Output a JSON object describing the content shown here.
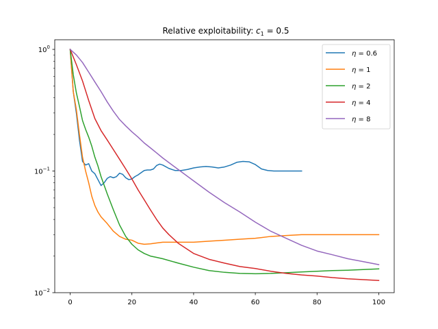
{
  "chart_data": {
    "type": "line",
    "title": "Relative exploitability: ",
    "title_math": "c",
    "title_math_sub": "1",
    "title_math_rest": " = 0.5",
    "xlabel": "",
    "ylabel": "",
    "yscale": "log",
    "xlim": [
      -5,
      105
    ],
    "ylim": [
      0.01,
      1.2
    ],
    "x_ticks": [
      0,
      20,
      40,
      60,
      80,
      100
    ],
    "x_tick_labels": [
      "0",
      "20",
      "40",
      "60",
      "80",
      "100"
    ],
    "y_ticks": [
      {
        "value": 1,
        "base": "10",
        "exp": "0"
      },
      {
        "value": 0.1,
        "base": "10",
        "exp": "−1"
      },
      {
        "value": 0.01,
        "base": "10",
        "exp": "−2"
      }
    ],
    "legend_position": "top-right",
    "series": [
      {
        "name": "η = 0.6",
        "legend_var": "η",
        "legend_val": " = 0.6",
        "color": "#1f77b4",
        "x": [
          0,
          1,
          2,
          3,
          4,
          5,
          6,
          7,
          8,
          9,
          10,
          11,
          12,
          13,
          14,
          15,
          16,
          17,
          18,
          19,
          20,
          21,
          22,
          23,
          24,
          25,
          26,
          27,
          28,
          29,
          30,
          32,
          34,
          36,
          38,
          40,
          42,
          44,
          46,
          48,
          50,
          52,
          54,
          56,
          58,
          60,
          62,
          64,
          66,
          68,
          70,
          72,
          75
        ],
        "y": [
          1.0,
          0.45,
          0.3,
          0.18,
          0.12,
          0.112,
          0.115,
          0.1,
          0.095,
          0.085,
          0.076,
          0.08,
          0.087,
          0.09,
          0.088,
          0.09,
          0.096,
          0.094,
          0.088,
          0.085,
          0.086,
          0.09,
          0.093,
          0.097,
          0.101,
          0.102,
          0.102,
          0.104,
          0.111,
          0.114,
          0.112,
          0.105,
          0.101,
          0.101,
          0.103,
          0.106,
          0.108,
          0.109,
          0.108,
          0.106,
          0.108,
          0.112,
          0.118,
          0.12,
          0.119,
          0.113,
          0.104,
          0.101,
          0.1,
          0.1,
          0.1,
          0.1,
          0.1
        ]
      },
      {
        "name": "η = 1",
        "legend_var": "η",
        "legend_val": " = 1",
        "color": "#ff7f0e",
        "x": [
          0,
          1,
          2,
          3,
          4,
          5,
          6,
          7,
          8,
          9,
          10,
          12,
          14,
          16,
          18,
          20,
          22,
          24,
          26,
          28,
          30,
          35,
          40,
          45,
          50,
          55,
          60,
          65,
          70,
          75,
          80,
          85,
          90,
          95,
          100
        ],
        "y": [
          1.0,
          0.45,
          0.32,
          0.2,
          0.13,
          0.1,
          0.08,
          0.062,
          0.052,
          0.046,
          0.042,
          0.037,
          0.032,
          0.029,
          0.0275,
          0.027,
          0.0255,
          0.025,
          0.0252,
          0.0256,
          0.026,
          0.026,
          0.026,
          0.0265,
          0.027,
          0.0275,
          0.028,
          0.029,
          0.0295,
          0.03,
          0.03,
          0.03,
          0.03,
          0.03,
          0.03
        ]
      },
      {
        "name": "η = 2",
        "legend_var": "η",
        "legend_val": " = 2",
        "color": "#2ca02c",
        "x": [
          0,
          1,
          2,
          3,
          4,
          5,
          6,
          7,
          8,
          9,
          10,
          12,
          14,
          16,
          18,
          20,
          22,
          24,
          26,
          28,
          30,
          35,
          40,
          45,
          50,
          55,
          60,
          65,
          70,
          75,
          80,
          85,
          90,
          95,
          100
        ],
        "y": [
          1.0,
          0.62,
          0.44,
          0.34,
          0.26,
          0.22,
          0.19,
          0.16,
          0.13,
          0.11,
          0.09,
          0.065,
          0.048,
          0.036,
          0.029,
          0.025,
          0.0225,
          0.021,
          0.02,
          0.0195,
          0.019,
          0.0175,
          0.0162,
          0.0152,
          0.0147,
          0.0144,
          0.0143,
          0.0144,
          0.0146,
          0.0148,
          0.015,
          0.0152,
          0.0153,
          0.0155,
          0.0157
        ]
      },
      {
        "name": "η = 4",
        "legend_var": "η",
        "legend_val": " = 4",
        "color": "#d62728",
        "x": [
          0,
          2,
          4,
          6,
          8,
          10,
          12,
          14,
          16,
          18,
          20,
          22,
          24,
          26,
          28,
          30,
          32,
          35,
          40,
          45,
          50,
          55,
          60,
          65,
          70,
          75,
          80,
          85,
          90,
          95,
          100
        ],
        "y": [
          1.0,
          0.75,
          0.55,
          0.38,
          0.27,
          0.215,
          0.18,
          0.15,
          0.125,
          0.104,
          0.086,
          0.07,
          0.058,
          0.048,
          0.04,
          0.034,
          0.03,
          0.0255,
          0.021,
          0.0188,
          0.0175,
          0.0164,
          0.0158,
          0.015,
          0.0144,
          0.014,
          0.0137,
          0.0133,
          0.013,
          0.0128,
          0.0126
        ]
      },
      {
        "name": "η = 8",
        "legend_var": "η",
        "legend_val": " = 8",
        "color": "#9467bd",
        "x": [
          0,
          2,
          4,
          6,
          8,
          10,
          12,
          14,
          16,
          18,
          20,
          22,
          24,
          26,
          28,
          30,
          35,
          40,
          45,
          50,
          55,
          60,
          65,
          70,
          75,
          80,
          85,
          90,
          95,
          100
        ],
        "y": [
          1.0,
          0.9,
          0.78,
          0.65,
          0.54,
          0.45,
          0.37,
          0.31,
          0.265,
          0.235,
          0.21,
          0.19,
          0.17,
          0.155,
          0.141,
          0.128,
          0.103,
          0.083,
          0.067,
          0.055,
          0.046,
          0.038,
          0.032,
          0.028,
          0.0245,
          0.022,
          0.0205,
          0.019,
          0.018,
          0.017
        ]
      }
    ]
  }
}
